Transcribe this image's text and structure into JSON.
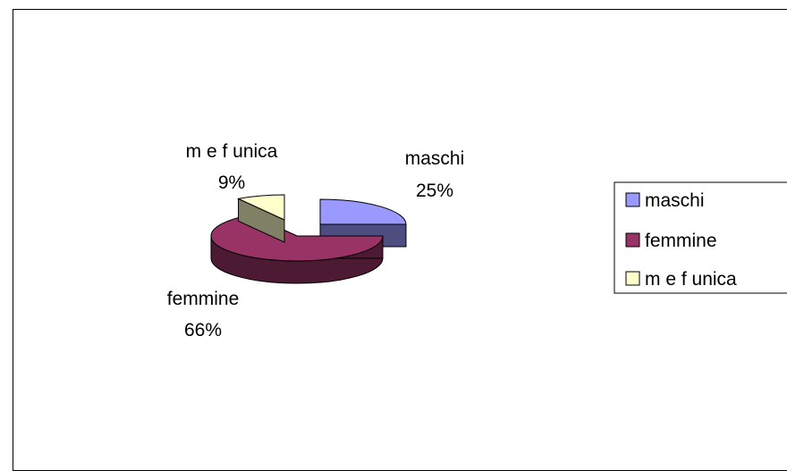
{
  "chart_data": {
    "type": "pie",
    "title": "",
    "categories": [
      "maschi",
      "femmine",
      "m e f unica"
    ],
    "values": [
      25,
      66,
      9
    ],
    "percent_labels": [
      "25%",
      "66%",
      "9%"
    ],
    "colors": {
      "maschi": "#9999ff",
      "femmine": "#993366",
      "m e f unica": "#ffffcc"
    },
    "side_colors": {
      "maschi": "#4d4d80",
      "femmine": "#4d1a33",
      "m e f unica": "#808066"
    },
    "style": "3d-exploded",
    "legend_position": "right"
  }
}
